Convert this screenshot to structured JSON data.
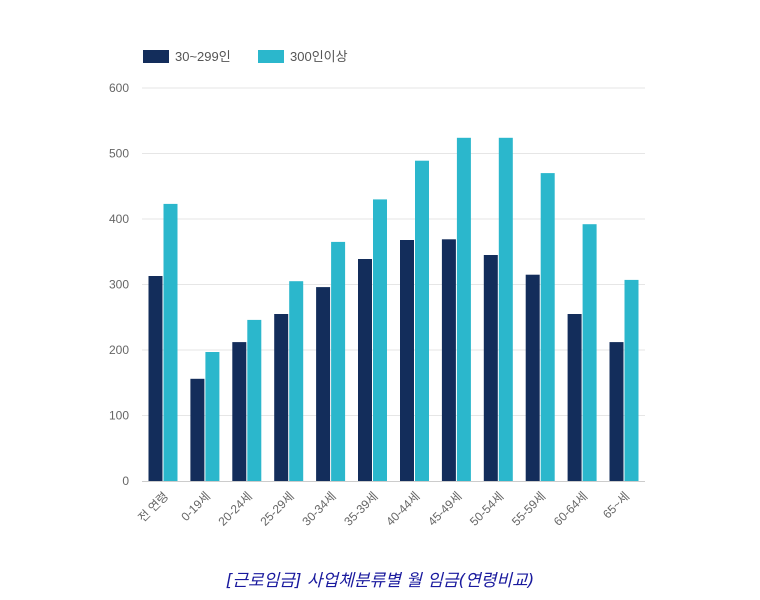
{
  "chart_data": {
    "type": "bar",
    "title": "[근로임금] 사업체분류별 월 임금(연령비교)",
    "xlabel": "",
    "ylabel": "",
    "ylim": [
      0,
      600
    ],
    "yticks": [
      "0",
      "100",
      "200",
      "300",
      "400",
      "500",
      "600"
    ],
    "grid": true,
    "legend_position": "top-left",
    "categories": [
      "전 연령",
      "0-19세",
      "20-24세",
      "25-29세",
      "30-34세",
      "35-39세",
      "40-44세",
      "45-49세",
      "50-54세",
      "55-59세",
      "60-64세",
      "65~세"
    ],
    "series": [
      {
        "name": "30~299인",
        "color": "#132d5b",
        "values": [
          313,
          156,
          212,
          255,
          296,
          339,
          368,
          369,
          345,
          315,
          255,
          212
        ]
      },
      {
        "name": "300인이상",
        "color": "#2bb7cc",
        "values": [
          423,
          197,
          246,
          305,
          365,
          430,
          489,
          524,
          524,
          470,
          392,
          307
        ]
      }
    ]
  },
  "caption": "[근로임금] 사업체분류별 월 임금(연령비교)",
  "colors": {
    "grid": "#e6e6e6",
    "axis": "#cccccc",
    "caption": "#1a1a9e"
  }
}
